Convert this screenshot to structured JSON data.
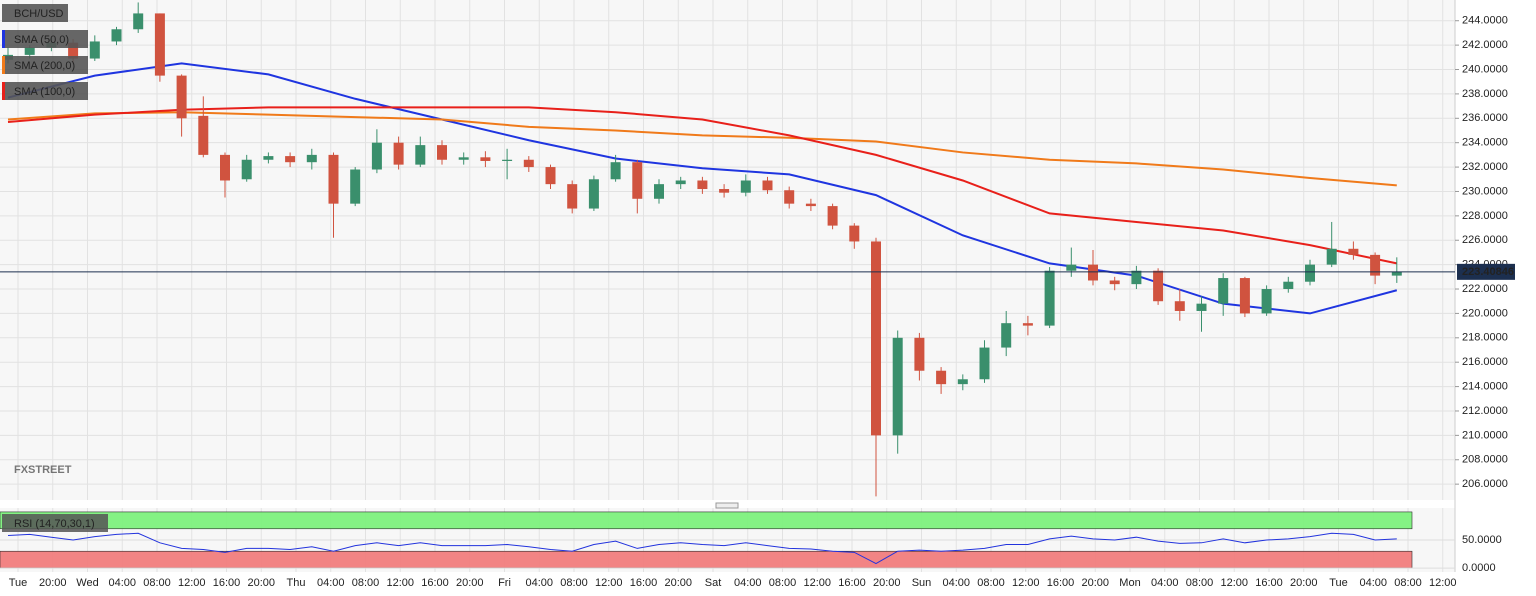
{
  "chart_data": [
    {
      "type": "candlestick",
      "title": "BCH/USD",
      "watermark": "FXSTREET",
      "candles": {
        "open": [
          240.8,
          241.2,
          241.8,
          242.2,
          240.9,
          242.3,
          243.3,
          244.6,
          239.5,
          236.2,
          233.0,
          231.0,
          232.6,
          232.9,
          232.4,
          233.0,
          229.0,
          231.8,
          234.0,
          232.2,
          233.8,
          232.6,
          232.8,
          232.5,
          232.6,
          232.0,
          230.6,
          228.6,
          231.0,
          232.4,
          229.4,
          230.6,
          230.9,
          230.2,
          229.9,
          230.9,
          230.1,
          229.0,
          228.8,
          227.2,
          225.9,
          210.0,
          218.0,
          215.3,
          214.2,
          214.6,
          217.2,
          219.2,
          219.0,
          223.5,
          224.0,
          222.7,
          222.4,
          223.5,
          221.0,
          220.2,
          220.8,
          222.9,
          220.0,
          222.0,
          222.6,
          224.0,
          225.3,
          224.8,
          223.1
        ],
        "high": [
          241.8,
          242.0,
          242.6,
          242.5,
          242.8,
          243.5,
          245.5,
          244.6,
          239.6,
          237.8,
          233.2,
          233.0,
          233.2,
          233.2,
          233.5,
          233.2,
          232.0,
          235.1,
          234.5,
          234.5,
          234.2,
          233.2,
          233.3,
          233.5,
          232.9,
          232.2,
          230.9,
          231.3,
          233.0,
          232.6,
          231.0,
          231.2,
          231.2,
          230.6,
          231.4,
          231.2,
          230.4,
          229.4,
          229.0,
          227.4,
          226.2,
          218.6,
          218.4,
          215.6,
          215.0,
          217.8,
          220.2,
          219.8,
          223.8,
          225.4,
          225.2,
          223.0,
          223.9,
          223.7,
          222.0,
          221.4,
          223.3,
          223.0,
          222.3,
          223.0,
          224.4,
          227.5,
          225.9,
          225.0,
          224.6
        ],
        "low": [
          240.5,
          240.9,
          241.5,
          240.5,
          240.7,
          242.0,
          243.0,
          239.0,
          234.5,
          232.8,
          229.5,
          230.8,
          232.3,
          232.0,
          231.8,
          226.2,
          228.8,
          231.5,
          231.8,
          232.0,
          232.2,
          232.2,
          232.0,
          231.0,
          231.6,
          230.2,
          228.2,
          228.4,
          230.8,
          228.2,
          229.0,
          230.2,
          229.8,
          229.5,
          229.6,
          229.8,
          228.6,
          228.4,
          226.9,
          225.3,
          205.0,
          208.5,
          214.5,
          213.4,
          213.7,
          214.3,
          216.5,
          218.2,
          218.8,
          223.0,
          222.3,
          221.9,
          222.0,
          220.7,
          219.4,
          218.5,
          219.8,
          219.7,
          219.8,
          221.7,
          222.3,
          223.8,
          224.4,
          222.4,
          222.5
        ],
        "close": [
          241.2,
          241.8,
          242.2,
          240.9,
          242.3,
          243.3,
          244.6,
          239.5,
          236.0,
          233.0,
          230.9,
          232.6,
          232.9,
          232.4,
          233.0,
          229.0,
          231.8,
          234.0,
          232.2,
          233.8,
          232.6,
          232.8,
          232.5,
          232.6,
          232.0,
          230.6,
          228.6,
          231.0,
          232.4,
          229.4,
          230.6,
          230.9,
          230.2,
          229.9,
          230.9,
          230.1,
          229.0,
          228.8,
          227.2,
          225.9,
          210.0,
          218.0,
          215.3,
          214.2,
          214.6,
          217.2,
          219.2,
          219.0,
          223.5,
          224.0,
          222.7,
          222.4,
          223.5,
          221.0,
          220.2,
          220.8,
          222.9,
          220.0,
          222.0,
          222.6,
          224.0,
          225.3,
          224.8,
          223.1,
          223.4
        ]
      },
      "up_color": "#3a8f6c",
      "down_color": "#d0533f",
      "series": [
        {
          "name": "SMA (50,0)",
          "color": "#1f35e0",
          "values": [
            237.7,
            239.5,
            240.5,
            239.6,
            237.6,
            235.9,
            234.2,
            232.7,
            231.9,
            231.4,
            229.7,
            226.4,
            224.1,
            223.1,
            220.8,
            220.0,
            221.9
          ]
        },
        {
          "name": "SMA (200,0)",
          "color": "#f07a1a",
          "values": [
            235.9,
            236.4,
            236.5,
            236.3,
            236.1,
            235.9,
            235.3,
            235.0,
            234.6,
            234.4,
            234.1,
            233.2,
            232.6,
            232.3,
            231.8,
            231.1,
            230.5
          ]
        },
        {
          "name": "SMA (100,0)",
          "color": "#e8201a",
          "values": [
            235.7,
            236.3,
            236.7,
            236.9,
            236.9,
            236.9,
            236.9,
            236.5,
            235.9,
            234.6,
            233.0,
            230.9,
            228.2,
            227.5,
            226.8,
            225.6,
            224.1
          ]
        }
      ],
      "last_price": 223.40846,
      "ylim": [
        204.7,
        245.7
      ],
      "yticks": [
        {
          "value": 206,
          "label": "206.0000"
        },
        {
          "value": 208,
          "label": "208.0000"
        },
        {
          "value": 210,
          "label": "210.0000"
        },
        {
          "value": 212,
          "label": "212.0000"
        },
        {
          "value": 214,
          "label": "214.0000"
        },
        {
          "value": 216,
          "label": "216.0000"
        },
        {
          "value": 218,
          "label": "218.0000"
        },
        {
          "value": 220,
          "label": "220.0000"
        },
        {
          "value": 222,
          "label": "222.0000"
        },
        {
          "value": 224,
          "label": "224.0000"
        },
        {
          "value": 226,
          "label": "226.0000"
        },
        {
          "value": 228,
          "label": "228.0000"
        },
        {
          "value": 230,
          "label": "230.0000"
        },
        {
          "value": 232,
          "label": "232.0000"
        },
        {
          "value": 234,
          "label": "234.0000"
        },
        {
          "value": 236,
          "label": "236.0000"
        },
        {
          "value": 238,
          "label": "238.0000"
        },
        {
          "value": 240,
          "label": "240.0000"
        },
        {
          "value": 242,
          "label": "242.0000"
        },
        {
          "value": 244,
          "label": "244.0000"
        }
      ],
      "grid": true
    },
    {
      "type": "line",
      "title": "RSI (14,70,30,1)",
      "series": [
        {
          "name": "RSI",
          "color": "#2233dd",
          "values": [
            58,
            60,
            55,
            50,
            56,
            60,
            62,
            45,
            35,
            33,
            28,
            35,
            35,
            33,
            38,
            30,
            40,
            45,
            40,
            45,
            40,
            40,
            40,
            42,
            38,
            33,
            30,
            42,
            48,
            35,
            42,
            45,
            42,
            40,
            45,
            40,
            35,
            34,
            30,
            28,
            8,
            30,
            32,
            30,
            32,
            35,
            42,
            42,
            52,
            57,
            52,
            50,
            55,
            48,
            44,
            45,
            52,
            45,
            50,
            52,
            56,
            62,
            60,
            50,
            52
          ]
        }
      ],
      "bands": [
        {
          "from": 70,
          "to": 100,
          "color": "#7ef27e"
        },
        {
          "from": 0,
          "to": 30,
          "color": "#f27e7e"
        }
      ],
      "ylim": [
        -7,
        107
      ],
      "yticks": [
        {
          "value": 0,
          "label": "0.0000"
        },
        {
          "value": 50,
          "label": "50.0000"
        }
      ],
      "x_labels": [
        "Tue",
        "20:00",
        "Wed",
        "04:00",
        "08:00",
        "12:00",
        "16:00",
        "20:00",
        "Thu",
        "04:00",
        "08:00",
        "12:00",
        "16:00",
        "20:00",
        "Fri",
        "04:00",
        "08:00",
        "12:00",
        "16:00",
        "20:00",
        "Sat",
        "04:00",
        "08:00",
        "12:00",
        "16:00",
        "20:00",
        "Sun",
        "04:00",
        "08:00",
        "12:00",
        "16:00",
        "20:00",
        "Mon",
        "04:00",
        "08:00",
        "12:00",
        "16:00",
        "20:00",
        "Tue",
        "04:00",
        "08:00",
        "12:00"
      ]
    }
  ]
}
